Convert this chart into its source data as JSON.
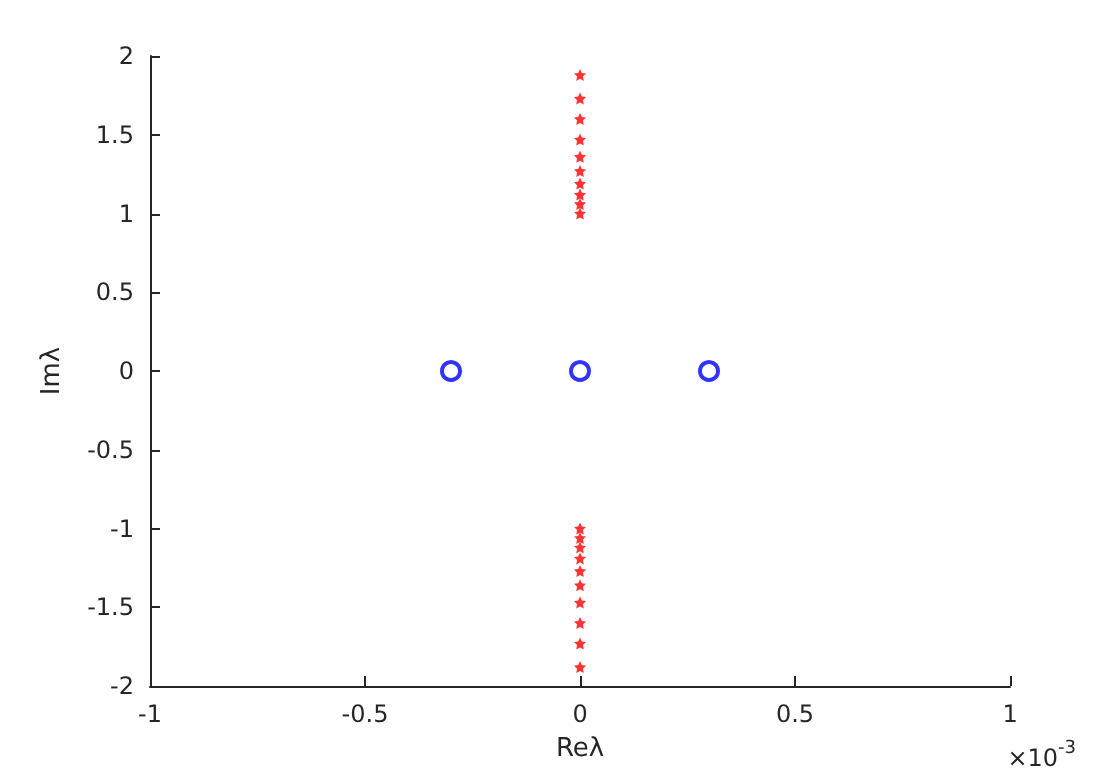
{
  "chart_data": {
    "type": "scatter",
    "xlabel": "Reλ",
    "ylabel": "Imλ",
    "xlim": [
      -1,
      1
    ],
    "xticks": [
      -1,
      -0.5,
      0,
      0.5,
      1
    ],
    "ylim": [
      -2,
      2
    ],
    "yticks": [
      -2,
      -1.5,
      -1,
      -0.5,
      0,
      0.5,
      1,
      1.5,
      2
    ],
    "grid": false,
    "annotations": [
      "×10$^{-3}$"
    ],
    "series": [
      {
        "color": "#ff0000",
        "marker": "star",
        "x": [
          0,
          0,
          0,
          0,
          0,
          0,
          0,
          0,
          0,
          0,
          0,
          0,
          0,
          0,
          0,
          0,
          0,
          0,
          0,
          0
        ],
        "values": [
          1.88,
          1.73,
          1.6,
          1.47,
          1.36,
          1.27,
          1.19,
          1.12,
          1.06,
          1.0,
          -1.0,
          -1.06,
          -1.12,
          -1.19,
          -1.27,
          -1.36,
          -1.47,
          -1.6,
          -1.73,
          -1.88
        ]
      },
      {
        "color": "#0000ff",
        "marker": "circle",
        "x": [
          -0.3,
          0,
          0.3
        ],
        "values": [
          0,
          0,
          0
        ]
      }
    ]
  }
}
